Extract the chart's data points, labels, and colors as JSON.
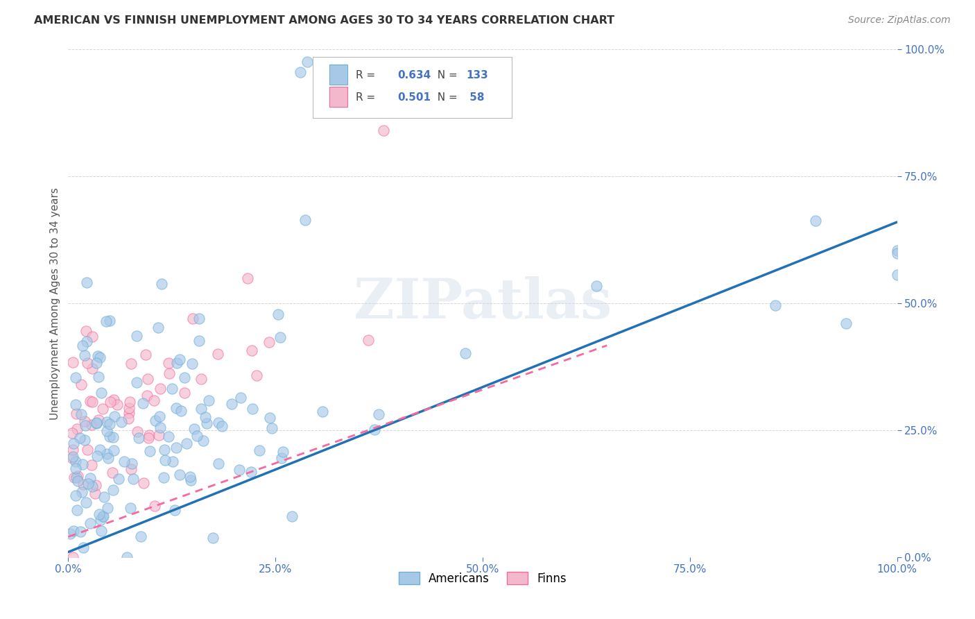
{
  "title": "AMERICAN VS FINNISH UNEMPLOYMENT AMONG AGES 30 TO 34 YEARS CORRELATION CHART",
  "source": "Source: ZipAtlas.com",
  "ylabel": "Unemployment Among Ages 30 to 34 years",
  "xlim": [
    0.0,
    1.0
  ],
  "ylim": [
    0.0,
    1.0
  ],
  "xticks": [
    0.0,
    0.25,
    0.5,
    0.75,
    1.0
  ],
  "yticks": [
    0.0,
    0.25,
    0.5,
    0.75,
    1.0
  ],
  "xticklabels": [
    "0.0%",
    "25.0%",
    "50.0%",
    "75.0%",
    "100.0%"
  ],
  "yticklabels": [
    "0.0%",
    "25.0%",
    "50.0%",
    "75.0%",
    "100.0%"
  ],
  "americans_color": "#a8c8e8",
  "americans_edge_color": "#6baed6",
  "finns_color": "#f4b8cc",
  "finns_edge_color": "#f768a1",
  "trendline_americans_color": "#2171b5",
  "trendline_finns_color": "#f768a1",
  "tick_color": "#4472c4",
  "watermark": "ZIPatlas",
  "legend_americans_R": 0.634,
  "legend_americans_N": 133,
  "legend_finns_R": 0.501,
  "legend_finns_N": 58,
  "legend_label_americans": "Americans",
  "legend_label_finns": "Finns",
  "grid_color": "#cccccc",
  "background_color": "#ffffff"
}
